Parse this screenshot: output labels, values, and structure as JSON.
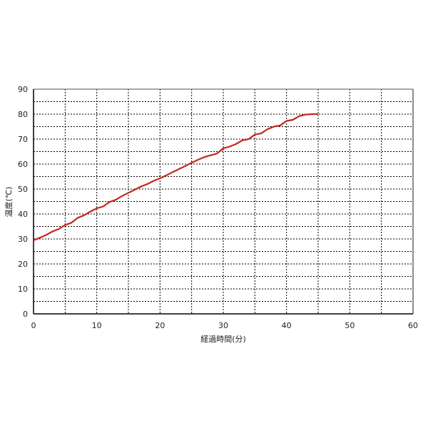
{
  "chart_data": {
    "type": "line",
    "title": "",
    "xlabel": "経過時間(分)",
    "ylabel": "温度(℃)",
    "xlim": [
      0,
      60
    ],
    "ylim": [
      0,
      90
    ],
    "xticks": [
      0,
      10,
      20,
      30,
      40,
      50,
      60
    ],
    "yticks": [
      0,
      10,
      20,
      30,
      40,
      50,
      60,
      70,
      80,
      90
    ],
    "grid": true,
    "grid_style": "dotted, every 5 units",
    "series": [
      {
        "color": "#c0281c",
        "x": [
          0,
          1,
          2,
          3,
          4,
          5,
          6,
          7,
          8,
          9,
          10,
          11,
          12,
          13,
          14,
          15,
          16,
          17,
          18,
          19,
          20,
          21,
          22,
          23,
          24,
          25,
          26,
          27,
          28,
          29,
          30,
          31,
          32,
          33,
          34,
          35,
          36,
          37,
          38,
          39,
          40,
          41,
          42,
          43,
          44,
          45
        ],
        "y": [
          29.5,
          30.5,
          31.6,
          33,
          34,
          35.6,
          36.5,
          38.5,
          39.5,
          41,
          42.3,
          43,
          44.8,
          45.7,
          47.2,
          48.5,
          49.7,
          51,
          52,
          53.3,
          54.3,
          55.5,
          56.8,
          58,
          59.2,
          60.5,
          61.7,
          62.8,
          63.5,
          64.2,
          66.3,
          67,
          68,
          69.5,
          70,
          71.8,
          72.3,
          74,
          75,
          75.5,
          77.3,
          77.7,
          79.2,
          79.8,
          80,
          80
        ]
      }
    ]
  }
}
